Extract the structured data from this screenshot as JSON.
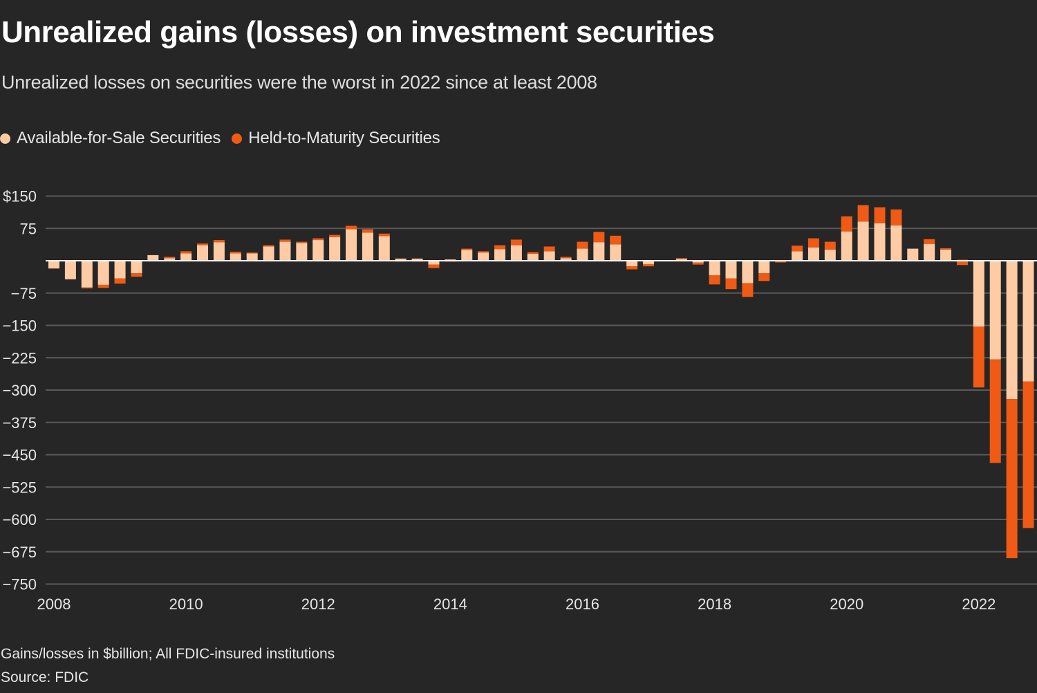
{
  "header": {
    "title": "Unrealized gains (losses) on investment securities",
    "subtitle": "Unrealized losses on securities were the worst in 2022 since at least 2008"
  },
  "legend": [
    {
      "label": "Available-for-Sale Securities",
      "color": "#ffcba4"
    },
    {
      "label": "Held-to-Maturity Securities",
      "color": "#f05a14"
    }
  ],
  "footer": {
    "note": "Gains/losses in $billion; All FDIC-insured institutions",
    "source": "Source: FDIC"
  },
  "colors": {
    "background": "#262626",
    "gridline": "#5a5a5a",
    "zero_line": "#ffffff",
    "afs": "#ffcba4",
    "htm": "#f05a14"
  },
  "chart_data": {
    "type": "bar",
    "stacked": true,
    "title": "Unrealized gains (losses) on investment securities",
    "subtitle": "Unrealized losses on securities were the worst in 2022 since at least 2008",
    "xlabel": "",
    "ylabel": "Gains/losses in $billion",
    "ylim": [
      -750,
      150
    ],
    "yticks": [
      150,
      75,
      0,
      -75,
      -150,
      -225,
      -300,
      -375,
      -450,
      -525,
      -600,
      -675,
      -750
    ],
    "ytick_labels": [
      "$150",
      "75",
      "",
      "−75",
      "−150",
      "−225",
      "−300",
      "−375",
      "−450",
      "−525",
      "−600",
      "−675",
      "−750"
    ],
    "xticks": [
      {
        "label": "2008",
        "index": 0
      },
      {
        "label": "2010",
        "index": 8
      },
      {
        "label": "2012",
        "index": 16
      },
      {
        "label": "2014",
        "index": 24
      },
      {
        "label": "2016",
        "index": 32
      },
      {
        "label": "2018",
        "index": 40
      },
      {
        "label": "2020",
        "index": 48
      },
      {
        "label": "2022",
        "index": 56
      }
    ],
    "grid": true,
    "legend_position": "top-left",
    "categories": [
      "Q1 2008",
      "Q2 2008",
      "Q3 2008",
      "Q4 2008",
      "Q1 2009",
      "Q2 2009",
      "Q3 2009",
      "Q4 2009",
      "Q1 2010",
      "Q2 2010",
      "Q3 2010",
      "Q4 2010",
      "Q1 2011",
      "Q2 2011",
      "Q3 2011",
      "Q4 2011",
      "Q1 2012",
      "Q2 2012",
      "Q3 2012",
      "Q4 2012",
      "Q1 2013",
      "Q2 2013",
      "Q3 2013",
      "Q4 2013",
      "Q1 2014",
      "Q2 2014",
      "Q3 2014",
      "Q4 2014",
      "Q1 2015",
      "Q2 2015",
      "Q3 2015",
      "Q4 2015",
      "Q1 2016",
      "Q2 2016",
      "Q3 2016",
      "Q4 2016",
      "Q1 2017",
      "Q2 2017",
      "Q3 2017",
      "Q4 2017",
      "Q1 2018",
      "Q2 2018",
      "Q3 2018",
      "Q4 2018",
      "Q1 2019",
      "Q2 2019",
      "Q3 2019",
      "Q4 2019",
      "Q1 2020",
      "Q2 2020",
      "Q3 2020",
      "Q4 2020",
      "Q1 2021",
      "Q2 2021",
      "Q3 2021",
      "Q4 2021",
      "Q1 2022",
      "Q2 2022",
      "Q3 2022",
      "Q4 2022"
    ],
    "series": [
      {
        "name": "Available-for-Sale Securities",
        "values": [
          -18,
          -43,
          -62,
          -56,
          -41,
          -29,
          13,
          6,
          17,
          36,
          43,
          17,
          17,
          33,
          44,
          41,
          48,
          55,
          73,
          65,
          57,
          5,
          5,
          -9,
          3,
          25,
          19,
          27,
          36,
          16,
          22,
          6,
          28,
          43,
          38,
          -13,
          -8,
          0,
          4,
          -4,
          -34,
          -41,
          -52,
          -29,
          -1,
          22,
          31,
          26,
          68,
          91,
          87,
          82,
          28,
          39,
          26,
          2,
          -153,
          -229,
          -321,
          -280
        ]
      },
      {
        "name": "Held-to-Maturity Securities",
        "values": [
          0,
          0,
          -2,
          -7,
          -12,
          -8,
          0,
          3,
          5,
          4,
          5,
          4,
          2,
          3,
          5,
          3,
          4,
          5,
          8,
          8,
          6,
          -2,
          -2,
          -8,
          -2,
          3,
          3,
          9,
          13,
          4,
          11,
          3,
          16,
          24,
          20,
          -7,
          -5,
          0,
          2,
          -5,
          -21,
          -25,
          -32,
          -18,
          -3,
          13,
          21,
          18,
          35,
          38,
          37,
          37,
          0,
          11,
          3,
          -10,
          -141,
          -240,
          -369,
          -340
        ]
      }
    ]
  }
}
